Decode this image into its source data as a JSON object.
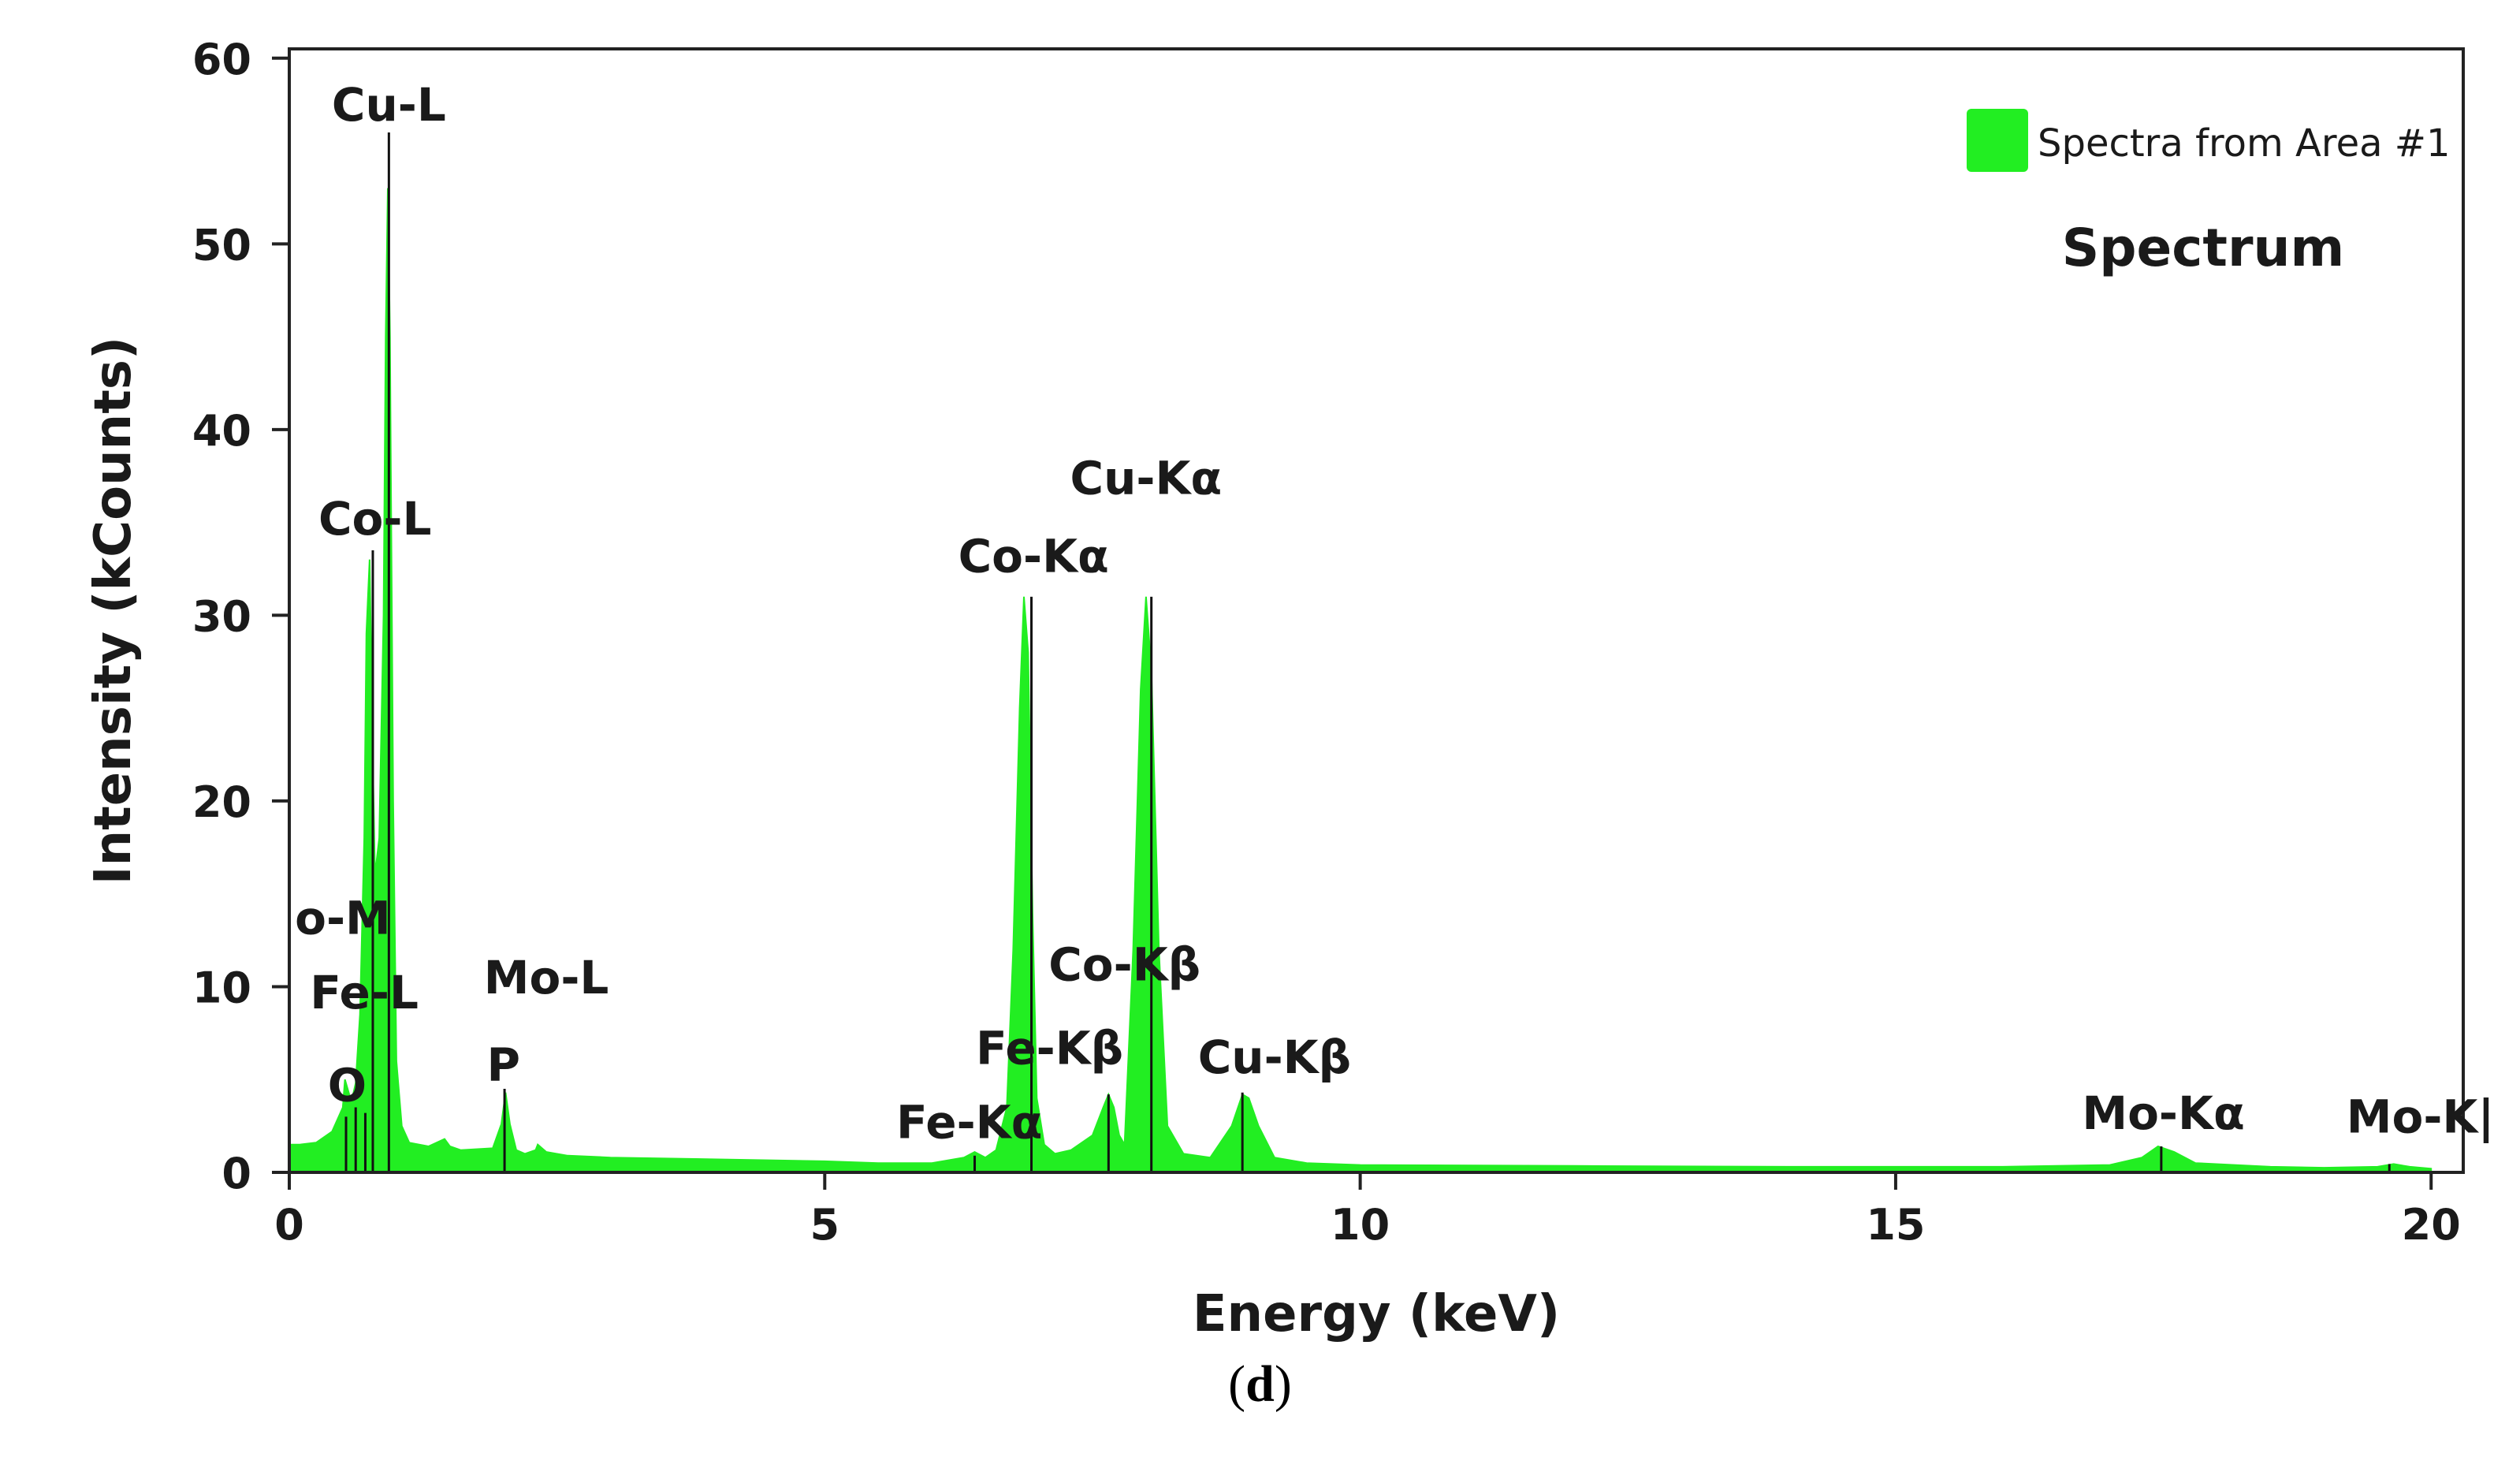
{
  "chart_data": {
    "type": "area",
    "title": "Spectrum",
    "xlabel": "Energy (keV)",
    "ylabel": "Intensity (kCounts)",
    "xlim": [
      0,
      20.3
    ],
    "ylim": [
      0,
      60.5
    ],
    "xticks": [
      0,
      5,
      10,
      15,
      20
    ],
    "yticks": [
      0,
      10,
      20,
      30,
      40,
      50,
      60
    ],
    "grid": false,
    "legend": {
      "position": "top-right",
      "entries": [
        "Spectra from Area #1"
      ]
    },
    "series": [
      {
        "name": "Spectra from Area #1",
        "color": "#22ee22",
        "x": [
          0.0,
          0.1,
          0.25,
          0.4,
          0.5,
          0.52,
          0.58,
          0.62,
          0.66,
          0.7,
          0.72,
          0.75,
          0.78,
          0.8,
          0.84,
          0.88,
          0.9,
          0.92,
          0.94,
          0.97,
          1.0,
          1.05,
          1.12,
          1.3,
          1.45,
          1.5,
          1.6,
          1.9,
          1.98,
          2.02,
          2.06,
          2.12,
          2.2,
          2.3,
          2.32,
          2.4,
          2.6,
          3.0,
          4.0,
          5.0,
          5.5,
          6.0,
          6.3,
          6.4,
          6.5,
          6.6,
          6.7,
          6.76,
          6.82,
          6.86,
          6.9,
          6.94,
          6.98,
          7.05,
          7.15,
          7.3,
          7.5,
          7.6,
          7.65,
          7.7,
          7.75,
          7.8,
          7.88,
          7.95,
          8.0,
          8.05,
          8.12,
          8.2,
          8.35,
          8.6,
          8.8,
          8.9,
          8.96,
          9.05,
          9.2,
          9.5,
          10.0,
          12.0,
          14.0,
          16.0,
          17.0,
          17.3,
          17.45,
          17.6,
          17.8,
          18.5,
          19.0,
          19.5,
          19.65,
          19.8,
          20.0
        ],
        "y": [
          1.5,
          1.5,
          1.6,
          2.2,
          3.5,
          5.0,
          3.8,
          4.8,
          8.5,
          18.0,
          29.0,
          33.0,
          22.0,
          16.0,
          18.0,
          30.0,
          45.0,
          53.0,
          45.0,
          20.0,
          6.0,
          2.5,
          1.6,
          1.4,
          1.8,
          1.4,
          1.2,
          1.3,
          2.6,
          4.3,
          2.6,
          1.2,
          1.0,
          1.2,
          1.5,
          1.1,
          0.9,
          0.8,
          0.7,
          0.6,
          0.5,
          0.5,
          0.8,
          1.1,
          0.8,
          1.2,
          3.5,
          12.0,
          25.0,
          31.0,
          28.0,
          14.0,
          4.0,
          1.5,
          1.0,
          1.2,
          2.0,
          3.5,
          4.2,
          3.5,
          2.0,
          1.5,
          12.0,
          26.0,
          31.0,
          27.0,
          12.0,
          2.5,
          1.0,
          0.8,
          2.5,
          4.2,
          4.0,
          2.5,
          0.8,
          0.5,
          0.4,
          0.35,
          0.3,
          0.3,
          0.4,
          0.8,
          1.4,
          1.1,
          0.5,
          0.3,
          0.25,
          0.3,
          0.45,
          0.3,
          0.2
        ]
      }
    ],
    "peak_lines": [
      {
        "x": 0.53,
        "y": 3.0
      },
      {
        "x": 0.62,
        "y": 3.5
      },
      {
        "x": 0.71,
        "y": 3.2
      },
      {
        "x": 0.78,
        "y": 33.5
      },
      {
        "x": 0.93,
        "y": 56.0
      },
      {
        "x": 2.01,
        "y": 4.5
      },
      {
        "x": 6.4,
        "y": 0.9
      },
      {
        "x": 6.93,
        "y": 31.0
      },
      {
        "x": 7.65,
        "y": 4.2
      },
      {
        "x": 8.05,
        "y": 31.0
      },
      {
        "x": 8.9,
        "y": 4.3
      },
      {
        "x": 17.48,
        "y": 1.4
      },
      {
        "x": 19.61,
        "y": 0.45
      }
    ],
    "annotations": [
      {
        "text": "Cu-L",
        "x": 0.93,
        "y": 56.3
      },
      {
        "text": "Co-L",
        "x": 0.8,
        "y": 34.0
      },
      {
        "text": "o-M",
        "x": 0.5,
        "y": 12.5
      },
      {
        "text": "Fe-L",
        "x": 0.7,
        "y": 8.5
      },
      {
        "text": "O",
        "x": 0.54,
        "y": 3.5
      },
      {
        "text": "Mo-L",
        "x": 2.4,
        "y": 9.3
      },
      {
        "text": "P",
        "x": 2.0,
        "y": 4.6
      },
      {
        "text": "Fe-Kα",
        "x": 6.35,
        "y": 1.5
      },
      {
        "text": "Co-Kα",
        "x": 6.95,
        "y": 32.0
      },
      {
        "text": "Cu-Kα",
        "x": 8.0,
        "y": 36.2
      },
      {
        "text": "Fe-Kβ",
        "x": 7.1,
        "y": 5.5
      },
      {
        "text": "Co-Kβ",
        "x": 7.8,
        "y": 10.0
      },
      {
        "text": "Cu-Kβ",
        "x": 9.2,
        "y": 5.0
      },
      {
        "text": "Mo-Kα",
        "x": 17.5,
        "y": 2.0
      },
      {
        "text": "Mo-K|",
        "x": 19.9,
        "y": 1.8
      }
    ]
  },
  "caption": {
    "open": "(",
    "letter": "d",
    "close": ")"
  }
}
